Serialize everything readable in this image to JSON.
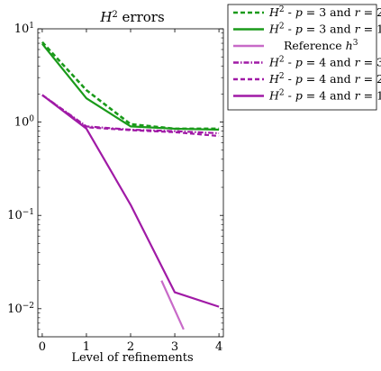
{
  "chart_data": {
    "type": "line",
    "title": "H² errors",
    "xlabel": "Level of refinements",
    "ylabel": "",
    "x_ticks": [
      "0",
      "1",
      "2",
      "3",
      "4"
    ],
    "y_ticks": [
      {
        "base": "10",
        "exp": "1",
        "value": 10
      },
      {
        "base": "10",
        "exp": "0",
        "value": 1
      },
      {
        "base": "10",
        "exp": "−1",
        "value": 0.1
      },
      {
        "base": "10",
        "exp": "−2",
        "value": 0.01
      }
    ],
    "xlim": [
      -0.1,
      4.1
    ],
    "ylim": [
      0.005,
      10
    ],
    "yscale": "log",
    "grid": false,
    "legend_position": "outside-top-right",
    "series": [
      {
        "name": "H² - p = 3 and r = 2",
        "color": "#1a9a1a",
        "dash": "dashed",
        "x": [
          0,
          1,
          2,
          3,
          4
        ],
        "y": [
          7.2,
          2.2,
          0.95,
          0.85,
          0.85
        ]
      },
      {
        "name": "H² - p = 3 and r = 1",
        "color": "#1a9a1a",
        "dash": "solid",
        "x": [
          0,
          1,
          2,
          3,
          4
        ],
        "y": [
          6.9,
          1.8,
          0.9,
          0.85,
          0.83
        ]
      },
      {
        "name": "Reference h³",
        "color": "#c86ac8",
        "dash": "solid",
        "x": [
          2.7,
          3.2
        ],
        "y": [
          0.02,
          0.006
        ]
      },
      {
        "name": "H² - p = 4 and r = 3",
        "color": "#a01aa6",
        "dash": "dashdot",
        "x": [
          0,
          1,
          2,
          3,
          4
        ],
        "y": [
          1.95,
          0.9,
          0.83,
          0.8,
          0.76
        ]
      },
      {
        "name": "H² - p = 4 and r = 2",
        "color": "#a01aa6",
        "dash": "dashed",
        "x": [
          0,
          1,
          2,
          3,
          4
        ],
        "y": [
          1.95,
          0.88,
          0.82,
          0.78,
          0.71
        ]
      },
      {
        "name": "H² - p = 4 and r = 1",
        "color": "#a01aa6",
        "dash": "solid",
        "x": [
          0,
          1,
          2,
          3,
          4
        ],
        "y": [
          1.95,
          0.85,
          0.13,
          0.015,
          0.0105
        ]
      }
    ]
  }
}
